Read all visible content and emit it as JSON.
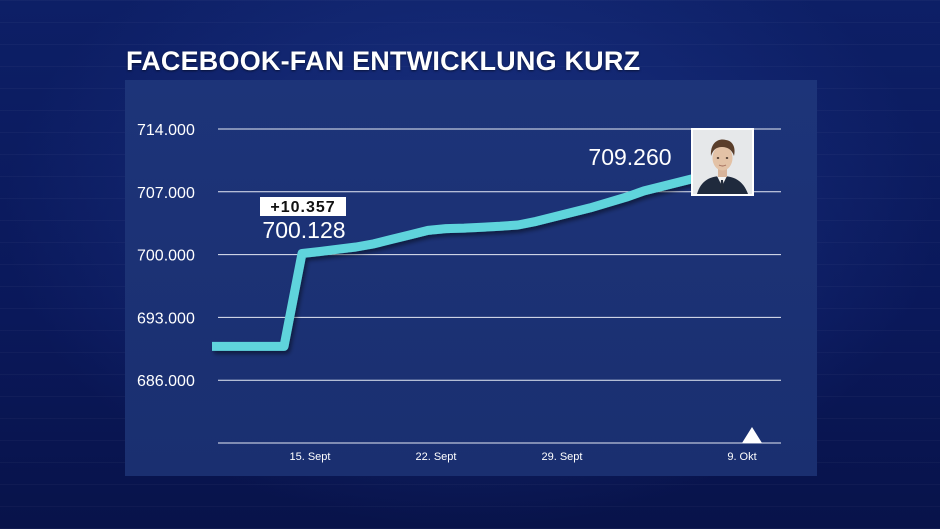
{
  "title": "FACEBOOK-FAN ENTWICKLUNG KURZ",
  "chart_data": {
    "type": "line",
    "yticks": [
      "714.000",
      "707.000",
      "700.000",
      "693.000",
      "686.000"
    ],
    "ytick_values": [
      714000,
      707000,
      700000,
      693000,
      686000
    ],
    "xticks": [
      "15. Sept",
      "22. Sept",
      "29. Sept",
      "9. Okt"
    ],
    "ylim": [
      679000,
      714000
    ],
    "grid": true,
    "series": [
      {
        "x": [
          "2017-09-10",
          "2017-09-11",
          "2017-09-12",
          "2017-09-13",
          "2017-09-14",
          "2017-09-15",
          "2017-09-16",
          "2017-09-17",
          "2017-09-18",
          "2017-09-19",
          "2017-09-20",
          "2017-09-21",
          "2017-09-22",
          "2017-09-23",
          "2017-09-24",
          "2017-09-25",
          "2017-09-26",
          "2017-09-27",
          "2017-09-28",
          "2017-09-29",
          "2017-09-30",
          "2017-10-01",
          "2017-10-02",
          "2017-10-03",
          "2017-10-04",
          "2017-10-05",
          "2017-10-06",
          "2017-10-07",
          "2017-10-08",
          "2017-10-09",
          "2017-10-10",
          "2017-10-11",
          "2017-10-12"
        ],
        "values": [
          689770,
          689770,
          689770,
          689770,
          689770,
          700128,
          700350,
          700600,
          700850,
          701200,
          701700,
          702200,
          702700,
          702900,
          702950,
          703050,
          703150,
          703300,
          703700,
          704200,
          704700,
          705200,
          705800,
          706400,
          707100,
          707600,
          708100,
          708600,
          709260,
          null,
          null,
          null,
          null
        ]
      }
    ],
    "annotations": {
      "jump_delta": "+10.357",
      "jump_value": "700.128",
      "end_value": "709.260"
    },
    "line_color": "#5fd4dc"
  }
}
